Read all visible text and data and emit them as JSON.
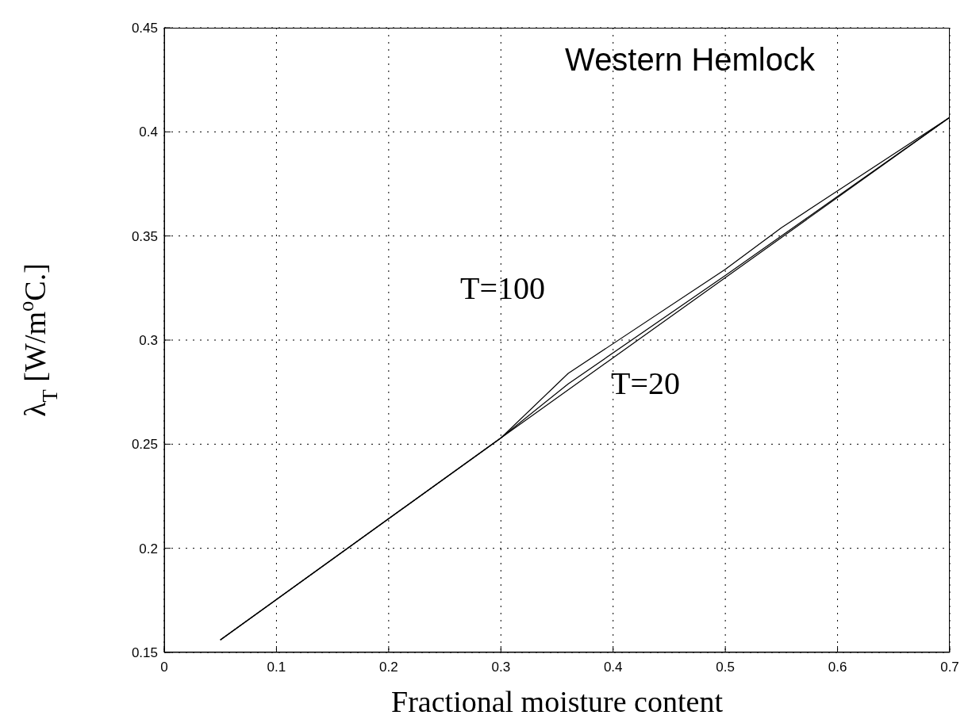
{
  "chart_data": {
    "type": "line",
    "title": "Western Hemlock",
    "xlabel": "Fractional moisture content",
    "ylabel": "λ$_{T}$ [W/m$^{o}$C.]",
    "series": [
      {
        "color": "#000000",
        "x": [
          0.05,
          0.3,
          0.36,
          0.5,
          0.55,
          0.7
        ],
        "values": [
          0.156,
          0.253,
          0.284,
          0.334,
          0.354,
          0.407
        ]
      },
      {
        "color": "#000000",
        "x": [
          0.05,
          0.3,
          0.36,
          0.5,
          0.7
        ],
        "values": [
          0.156,
          0.253,
          0.279,
          0.331,
          0.407
        ]
      },
      {
        "color": "#000000",
        "x": [
          0.05,
          0.3,
          0.7
        ],
        "values": [
          0.156,
          0.253,
          0.407
        ]
      }
    ],
    "annotations": [
      "T=100",
      "T=20"
    ],
    "xlim": [
      0,
      0.7
    ],
    "xticks": [
      0,
      0.1,
      0.2,
      0.3,
      0.4,
      0.5,
      0.6,
      0.7
    ],
    "ylim": [
      0.15,
      0.45
    ],
    "yticks": [
      0.15,
      0.2,
      0.25,
      0.3,
      0.35,
      0.4,
      0.45
    ],
    "grid": true,
    "line_style": "solid",
    "marker": "none"
  }
}
